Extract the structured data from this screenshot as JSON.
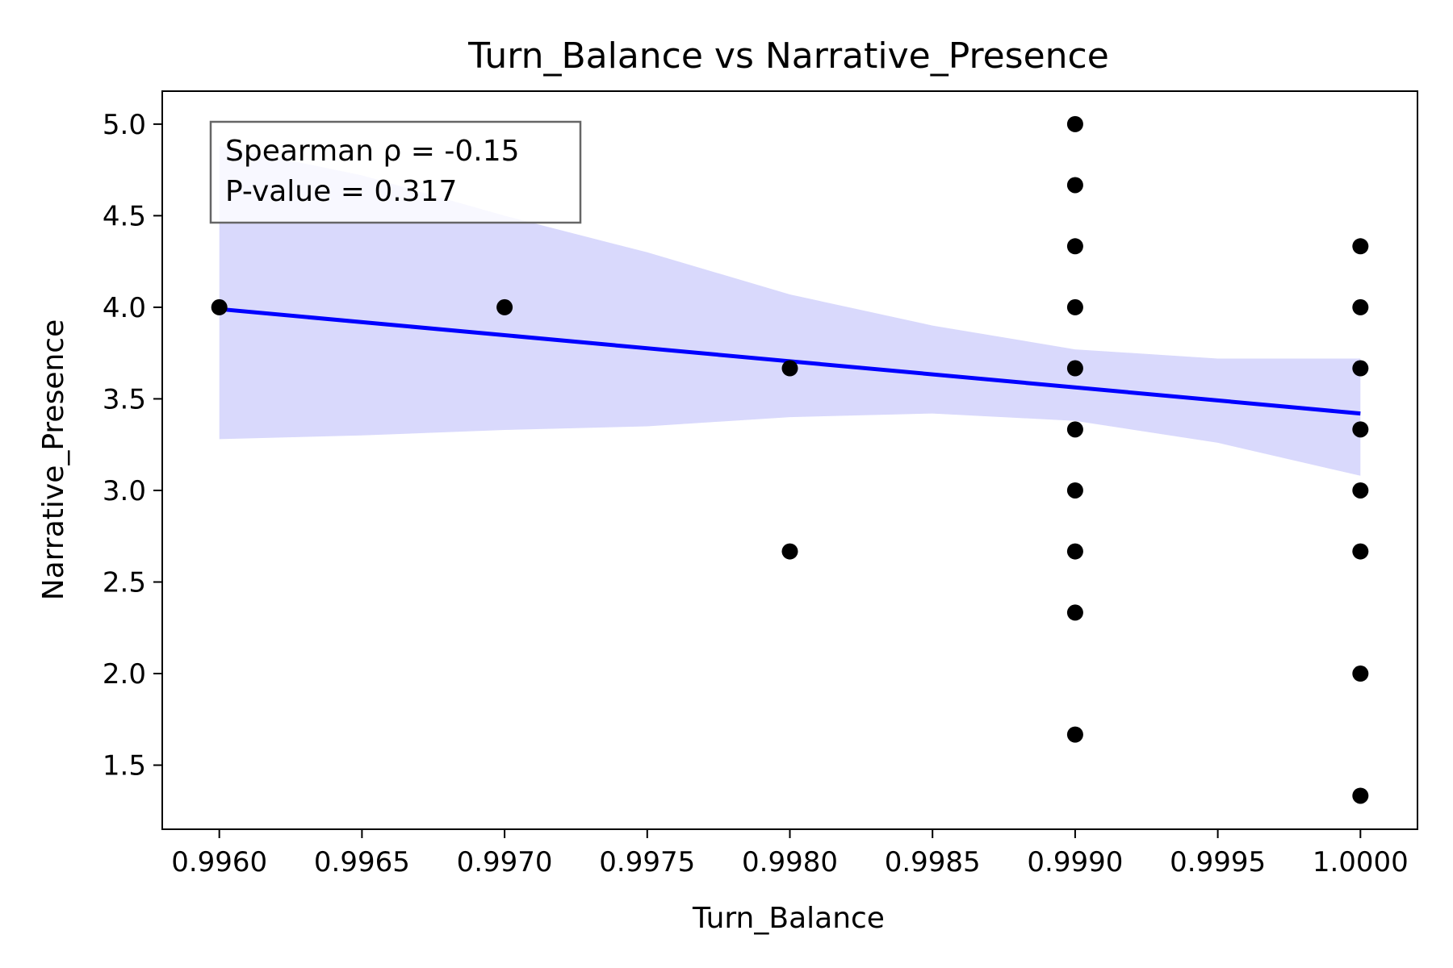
{
  "chart_data": {
    "type": "scatter",
    "title": "Turn_Balance vs Narrative_Presence",
    "xlabel": "Turn_Balance",
    "ylabel": "Narrative_Presence",
    "xlim": [
      0.9958,
      1.0002
    ],
    "ylim": [
      1.15,
      5.18
    ],
    "x_ticks": [
      0.996,
      0.9965,
      0.997,
      0.9975,
      0.998,
      0.9985,
      0.999,
      0.9995,
      1.0
    ],
    "x_tick_labels": [
      "0.9960",
      "0.9965",
      "0.9970",
      "0.9975",
      "0.9980",
      "0.9985",
      "0.9990",
      "0.9995",
      "1.0000"
    ],
    "y_ticks": [
      1.5,
      2.0,
      2.5,
      3.0,
      3.5,
      4.0,
      4.5,
      5.0
    ],
    "y_tick_labels": [
      "1.5",
      "2.0",
      "2.5",
      "3.0",
      "3.5",
      "4.0",
      "4.5",
      "5.0"
    ],
    "grid": false,
    "points": [
      {
        "x": 0.996,
        "y": 4.0
      },
      {
        "x": 0.997,
        "y": 4.0
      },
      {
        "x": 0.998,
        "y": 3.667
      },
      {
        "x": 0.998,
        "y": 2.667
      },
      {
        "x": 0.999,
        "y": 5.0
      },
      {
        "x": 0.999,
        "y": 4.667
      },
      {
        "x": 0.999,
        "y": 4.333
      },
      {
        "x": 0.999,
        "y": 4.0
      },
      {
        "x": 0.999,
        "y": 3.667
      },
      {
        "x": 0.999,
        "y": 3.333
      },
      {
        "x": 0.999,
        "y": 3.0
      },
      {
        "x": 0.999,
        "y": 2.667
      },
      {
        "x": 0.999,
        "y": 2.333
      },
      {
        "x": 0.999,
        "y": 1.667
      },
      {
        "x": 1.0,
        "y": 4.333
      },
      {
        "x": 1.0,
        "y": 4.0
      },
      {
        "x": 1.0,
        "y": 3.667
      },
      {
        "x": 1.0,
        "y": 3.333
      },
      {
        "x": 1.0,
        "y": 3.0
      },
      {
        "x": 1.0,
        "y": 2.667
      },
      {
        "x": 1.0,
        "y": 2.0
      },
      {
        "x": 1.0,
        "y": 1.333
      }
    ],
    "regression_line": {
      "x": [
        0.996,
        1.0
      ],
      "y": [
        3.99,
        3.42
      ],
      "color": "#0000ff"
    },
    "confidence_band": {
      "color": "#d9d9fc",
      "x": [
        0.996,
        0.9965,
        0.997,
        0.9975,
        0.998,
        0.9985,
        0.999,
        0.9995,
        1.0
      ],
      "upper": [
        4.88,
        4.72,
        4.5,
        4.3,
        4.07,
        3.9,
        3.77,
        3.72,
        3.72
      ],
      "lower": [
        3.28,
        3.3,
        3.33,
        3.35,
        3.4,
        3.42,
        3.38,
        3.26,
        3.08
      ]
    },
    "point_color": "#000000",
    "annotation": {
      "lines": [
        "Spearman ρ = -0.15",
        "P-value = 0.317"
      ],
      "position": "top-left"
    }
  }
}
